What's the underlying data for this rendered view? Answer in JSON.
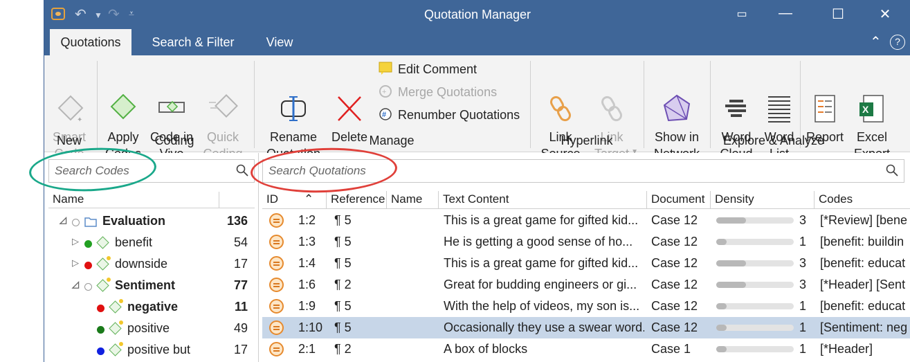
{
  "window": {
    "title": "Quotation Manager"
  },
  "tabs": [
    {
      "label": "Quotations",
      "active": true
    },
    {
      "label": "Search & Filter",
      "active": false
    },
    {
      "label": "View",
      "active": false
    }
  ],
  "ribbon": {
    "new": {
      "smart_code": "Smart\nCode",
      "group": "New"
    },
    "coding": {
      "apply_codes": "Apply\nCodes",
      "code_in_vivo": "Code in\nVivo",
      "quick_coding": "Quick\nCoding",
      "group": "Coding"
    },
    "manage": {
      "rename": "Rename\nQuotation",
      "delete": "Delete",
      "edit_comment": "Edit Comment",
      "merge": "Merge Quotations",
      "renumber": "Renumber Quotations",
      "group": "Manage"
    },
    "hyperlink": {
      "link_source": "Link\nSource",
      "link_target": "Link\nTarget",
      "group": "Hyperlink"
    },
    "explore": {
      "show_network": "Show in\nNetwork",
      "word_cloud": "Word\nCloud",
      "word_list": "Word\nList",
      "report": "Report",
      "excel_export": "Excel\nExport",
      "group": "Explore & Analyze"
    }
  },
  "codes_pane": {
    "search_placeholder": "Search Codes",
    "header_name": "Name",
    "rows": [
      {
        "label": "Evaluation",
        "count": "136",
        "bold": true,
        "level": 0,
        "expander": "◿",
        "dot": "hollow",
        "icon": "folder"
      },
      {
        "label": "benefit",
        "count": "54",
        "bold": false,
        "level": 1,
        "expander": "▷",
        "dot": "#22a022",
        "icon": "code"
      },
      {
        "label": "downside",
        "count": "17",
        "bold": false,
        "level": 1,
        "expander": "▷",
        "dot": "#e01010",
        "icon": "code-star"
      },
      {
        "label": "Sentiment",
        "count": "77",
        "bold": true,
        "level": 1,
        "expander": "◿",
        "dot": "hollow",
        "icon": "code-star"
      },
      {
        "label": "negative",
        "count": "11",
        "bold": true,
        "level": 2,
        "expander": "",
        "dot": "#e01010",
        "icon": "code-star"
      },
      {
        "label": "positive",
        "count": "49",
        "bold": false,
        "level": 2,
        "expander": "",
        "dot": "#1a7a1a",
        "icon": "code-star"
      },
      {
        "label": "positive but",
        "count": "17",
        "bold": false,
        "level": 2,
        "expander": "",
        "dot": "#1020e0",
        "icon": "code-star"
      }
    ]
  },
  "quotations_pane": {
    "search_placeholder": "Search Quotations",
    "columns": [
      "ID",
      "Reference",
      "Name",
      "Text Content",
      "Document",
      "Density",
      "Codes"
    ],
    "rows": [
      {
        "id": "1:2",
        "ref": "¶ 5",
        "name": "",
        "text": "This is a great game for gifted kid...",
        "doc": "Case 12",
        "density": 3,
        "density_fraction": 0.38,
        "codes": "[*Review] [bene",
        "selected": false
      },
      {
        "id": "1:3",
        "ref": "¶ 5",
        "name": "",
        "text": "He is getting a good sense of ho...",
        "doc": "Case 12",
        "density": 1,
        "density_fraction": 0.13,
        "codes": "[benefit: buildin",
        "selected": false
      },
      {
        "id": "1:4",
        "ref": "¶ 5",
        "name": "",
        "text": "This is a great game for gifted kid...",
        "doc": "Case 12",
        "density": 3,
        "density_fraction": 0.38,
        "codes": "[benefit: educat",
        "selected": false
      },
      {
        "id": "1:6",
        "ref": "¶ 2",
        "name": "",
        "text": "Great for budding engineers or gi...",
        "doc": "Case 12",
        "density": 3,
        "density_fraction": 0.38,
        "codes": "[*Header] [Sent",
        "selected": false
      },
      {
        "id": "1:9",
        "ref": "¶ 5",
        "name": "",
        "text": "With the help of videos, my son is...",
        "doc": "Case 12",
        "density": 1,
        "density_fraction": 0.13,
        "codes": "[benefit: educat",
        "selected": false
      },
      {
        "id": "1:10",
        "ref": "¶ 5",
        "name": "",
        "text": "Occasionally they use a swear word.",
        "doc": "Case 12",
        "density": 1,
        "density_fraction": 0.13,
        "codes": "[Sentiment: neg",
        "selected": true
      },
      {
        "id": "2:1",
        "ref": "¶ 2",
        "name": "",
        "text": "A box of blocks",
        "doc": "Case 1",
        "density": 1,
        "density_fraction": 0.13,
        "codes": "[*Header]",
        "selected": false
      }
    ]
  },
  "colors": {
    "titlebar": "#3f6698",
    "selection": "#c7d6e8",
    "highlight_codes": "#1aa88a",
    "highlight_quotes": "#e0403a"
  }
}
